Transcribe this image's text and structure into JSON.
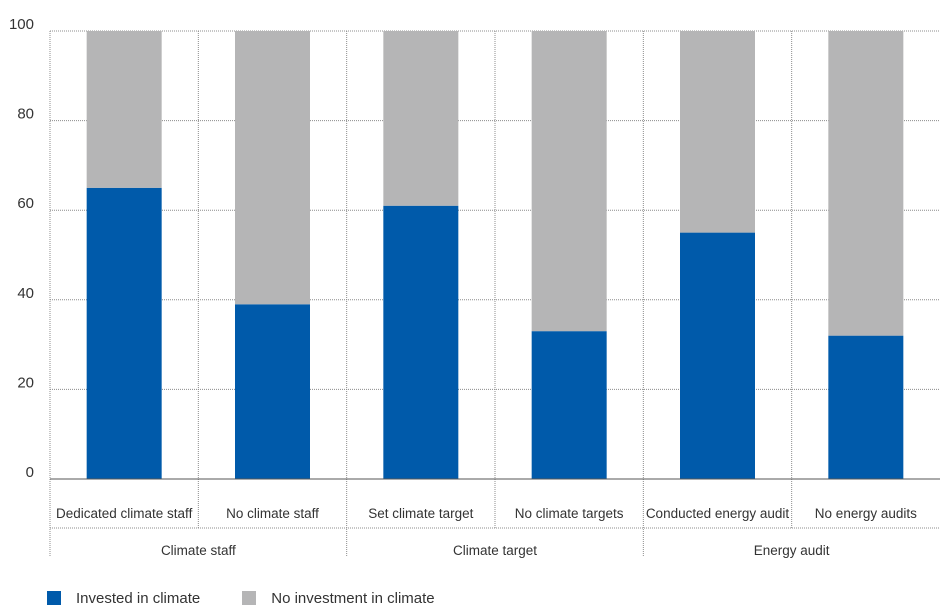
{
  "chart_data": {
    "type": "bar",
    "stacked": true,
    "categories": [
      "Dedicated climate staff",
      "No climate staff",
      "Set climate target",
      "No climate targets",
      "Conducted energy audit",
      "No energy audits"
    ],
    "groups": [
      {
        "label": "Climate staff",
        "categories": [
          "Dedicated climate staff",
          "No climate staff"
        ]
      },
      {
        "label": "Climate target",
        "categories": [
          "Set climate target",
          "No climate targets"
        ]
      },
      {
        "label": "Energy audit",
        "categories": [
          "Conducted energy audit",
          "No energy audits"
        ]
      }
    ],
    "series": [
      {
        "name": "Invested in climate",
        "color": "#005aaa",
        "values": [
          65,
          39,
          61,
          33,
          55,
          32
        ]
      },
      {
        "name": "No investment in climate",
        "color": "#b5b5b6",
        "values": [
          35,
          61,
          39,
          67,
          45,
          68
        ]
      }
    ],
    "ylim": [
      0,
      100
    ],
    "yticks": [
      "0",
      "20",
      "40",
      "60",
      "80",
      "100"
    ],
    "grid": true,
    "legend_position": "bottom-left",
    "title": "",
    "xlabel": "",
    "ylabel": ""
  }
}
